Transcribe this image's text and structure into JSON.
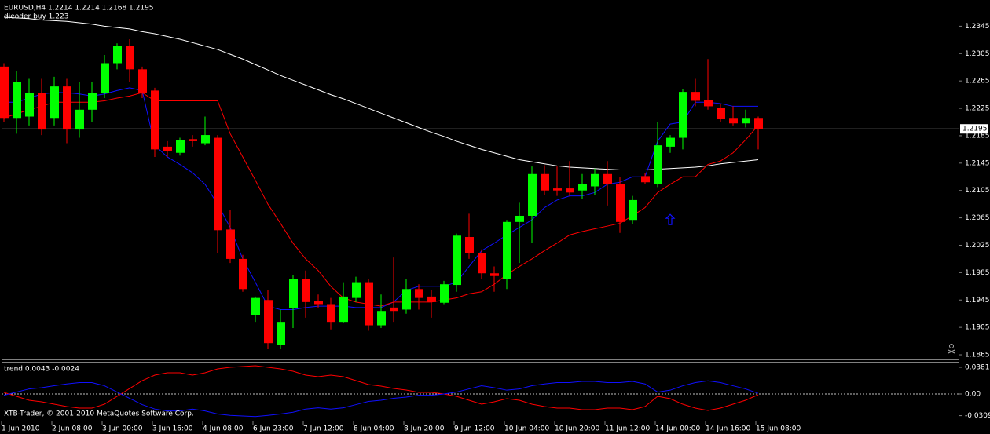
{
  "chart_data": [
    {
      "type": "candlestick",
      "title": "EURUSD,H4  1.2214 1.2214 1.2168 1.2195",
      "annotation": "dieoder buy 1.223",
      "categories": [
        "1 Jun 2010",
        null,
        null,
        null,
        "2 Jun 08:00",
        null,
        null,
        null,
        "3 Jun 00:00",
        null,
        null,
        null,
        "3 Jun 16:00",
        null,
        null,
        null,
        "4 Jun 08:00",
        null,
        null,
        null,
        "6 Jun 23:00",
        null,
        null,
        null,
        "7 Jun 12:00",
        null,
        null,
        null,
        "8 Jun 04:00",
        null,
        null,
        null,
        "8 Jun 20:00",
        null,
        null,
        null,
        "9 Jun 12:00",
        null,
        null,
        null,
        "10 Jun 04:00",
        null,
        null,
        null,
        "10 Jun 20:00",
        null,
        null,
        null,
        "11 Jun 12:00",
        null,
        null,
        null,
        "14 Jun 00:00",
        null,
        null,
        null,
        "14 Jun 16:00",
        null,
        null,
        null,
        "15 Jun 08:00"
      ],
      "open": [
        1.2286,
        1.2211,
        1.2213,
        1.2248,
        1.2211,
        1.2257,
        1.2194,
        1.2223,
        1.2248,
        1.2291,
        1.2316,
        1.2282,
        1.2251,
        1.2169,
        1.216,
        1.218,
        1.2174,
        1.2182,
        1.2048,
        1.2005,
        1.1923,
        1.1945,
        1.1879,
        1.1933,
        1.1976,
        1.1944,
        1.1939,
        1.1913,
        1.1948,
        1.1971,
        1.1908,
        1.1934,
        1.1931,
        1.1961,
        1.195,
        1.1941,
        1.1967,
        1.2037,
        1.2014,
        1.1984,
        1.1976,
        1.2059,
        1.2068,
        1.2129,
        1.2108,
        1.2108,
        1.2105,
        1.2111,
        1.2129,
        1.2114,
        1.2062,
        1.2126,
        1.2114,
        1.2169,
        1.2182,
        1.2249,
        1.2237,
        1.2226,
        1.2211,
        1.2203,
        1.2211
      ],
      "high": [
        1.2291,
        1.228,
        1.2268,
        1.2268,
        1.2271,
        1.2268,
        1.2263,
        1.2263,
        1.2303,
        1.232,
        1.2326,
        1.2286,
        1.2255,
        1.2177,
        1.2182,
        1.2186,
        1.2213,
        1.2186,
        1.2076,
        1.2011,
        1.195,
        1.1959,
        1.1931,
        1.1982,
        1.1988,
        1.1953,
        1.1948,
        1.1971,
        1.1979,
        1.1976,
        1.1953,
        1.2007,
        1.1976,
        1.1968,
        1.1959,
        1.1973,
        1.2042,
        1.2071,
        1.2019,
        1.1994,
        1.2062,
        1.2087,
        1.214,
        1.2142,
        1.214,
        1.2148,
        1.2129,
        1.2137,
        1.2148,
        1.2125,
        1.2097,
        1.2131,
        1.2205,
        1.2186,
        1.2253,
        1.2268,
        1.2297,
        1.2232,
        1.2228,
        1.2223,
        1.2213
      ],
      "low": [
        1.2205,
        1.2188,
        1.22,
        1.2186,
        1.22,
        1.2174,
        1.2182,
        1.2205,
        1.224,
        1.2282,
        1.2263,
        1.224,
        1.2154,
        1.2154,
        1.2156,
        1.2169,
        1.2171,
        1.2013,
        1.1999,
        1.1957,
        1.1913,
        1.1873,
        1.1873,
        1.1904,
        1.1919,
        1.1934,
        1.1902,
        1.1911,
        1.1942,
        1.19,
        1.1904,
        1.1913,
        1.1925,
        1.1931,
        1.1919,
        1.1939,
        1.1957,
        1.2005,
        1.1976,
        1.1957,
        1.1961,
        1.1999,
        1.2028,
        1.2099,
        1.2097,
        1.2097,
        1.2093,
        1.2099,
        1.2083,
        1.2043,
        1.2056,
        1.2114,
        1.211,
        1.216,
        1.2165,
        1.2228,
        1.2223,
        1.2205,
        1.22,
        1.2197,
        1.2165
      ],
      "close": [
        1.2211,
        1.2263,
        1.2248,
        1.2194,
        1.2257,
        1.2194,
        1.2223,
        1.2248,
        1.2291,
        1.2316,
        1.2282,
        1.2248,
        1.2165,
        1.2162,
        1.2179,
        1.2177,
        1.2186,
        1.2047,
        1.2005,
        1.1961,
        1.1948,
        1.1882,
        1.1913,
        1.1976,
        1.1942,
        1.1939,
        1.1913,
        1.195,
        1.1971,
        1.1908,
        1.1929,
        1.1929,
        1.1961,
        1.1948,
        1.1942,
        1.1968,
        1.2039,
        1.2013,
        1.1984,
        1.198,
        1.2059,
        1.2068,
        1.2129,
        1.2105,
        1.2105,
        1.2102,
        1.2114,
        1.2129,
        1.2114,
        1.2059,
        1.2091,
        1.2117,
        1.2171,
        1.2182,
        1.2249,
        1.2236,
        1.2228,
        1.2209,
        1.2203,
        1.2211,
        1.2195
      ],
      "up_color": "#00ff00",
      "down_color": "#ff0000",
      "lines": [
        {
          "color": "#ffffff",
          "values": [
            1.2358,
            1.2357,
            1.2356,
            1.2354,
            1.2353,
            1.2352,
            1.235,
            1.2348,
            1.2345,
            1.2343,
            1.2341,
            1.2337,
            1.2334,
            1.233,
            1.2326,
            1.2321,
            1.2316,
            1.2311,
            1.2304,
            1.2297,
            1.2289,
            1.2281,
            1.2273,
            1.2266,
            1.2259,
            1.2252,
            1.2245,
            1.2239,
            1.2232,
            1.2225,
            1.2218,
            1.2211,
            1.2204,
            1.2197,
            1.219,
            1.2184,
            1.2177,
            1.2171,
            1.2165,
            1.216,
            1.2155,
            1.215,
            1.2147,
            1.2144,
            1.2141,
            1.2139,
            1.2138,
            1.2137,
            1.2136,
            1.2135,
            1.2135,
            1.2135,
            1.2136,
            1.2137,
            1.2138,
            1.2139,
            1.2141,
            1.2144,
            1.2146,
            1.2148,
            1.215
          ]
        },
        {
          "color": "#1010ff",
          "values": [
            1.2234,
            1.2234,
            1.224,
            1.2246,
            1.2248,
            1.2248,
            1.2246,
            1.2243,
            1.2246,
            1.2251,
            1.2255,
            1.2251,
            1.2171,
            1.2154,
            1.2143,
            1.2131,
            1.2114,
            1.2085,
            1.2051,
            1.2005,
            1.1971,
            1.1936,
            1.1931,
            1.1931,
            1.1934,
            1.1936,
            1.1936,
            1.1936,
            1.1934,
            1.1934,
            1.1934,
            1.1942,
            1.1959,
            1.1965,
            1.1965,
            1.1965,
            1.1971,
            1.1994,
            1.2017,
            1.2028,
            1.204,
            1.2051,
            1.2062,
            1.208,
            1.2091,
            1.2097,
            1.2097,
            1.2102,
            1.2114,
            1.2117,
            1.2125,
            1.2125,
            1.2177,
            1.2202,
            1.2205,
            1.2234,
            1.2234,
            1.2232,
            1.2228,
            1.2228,
            1.2228
          ]
        },
        {
          "color": "#ff0000",
          "values": [
            1.2211,
            1.2217,
            1.2223,
            1.2228,
            1.2234,
            1.2234,
            1.2234,
            1.2234,
            1.2236,
            1.224,
            1.2243,
            1.2248,
            1.2236,
            1.2236,
            1.2236,
            1.2236,
            1.2236,
            1.2236,
            1.2188,
            1.2154,
            1.212,
            1.2085,
            1.2057,
            1.2028,
            1.2005,
            1.1988,
            1.1965,
            1.1948,
            1.1942,
            1.1939,
            1.1936,
            1.1942,
            1.1942,
            1.1942,
            1.1942,
            1.1945,
            1.1948,
            1.1954,
            1.1957,
            1.1968,
            1.1982,
            1.1994,
            1.2005,
            1.2017,
            1.2028,
            1.204,
            1.2045,
            1.2049,
            1.2053,
            1.2057,
            1.2068,
            1.208,
            1.2102,
            1.2114,
            1.2125,
            1.2125,
            1.2143,
            1.2148,
            1.216,
            1.2179,
            1.22
          ]
        }
      ],
      "last_price": 1.2195,
      "up_arrow": {
        "x": 53,
        "y": 1.2062,
        "color": "#1010ff"
      },
      "ylim": [
        1.1857,
        1.2381
      ],
      "yticks": [
        1.2345,
        1.2305,
        1.2265,
        1.2225,
        1.2185,
        1.2145,
        1.2105,
        1.2065,
        1.2025,
        1.1985,
        1.1945,
        1.1905,
        1.1865
      ]
    },
    {
      "type": "line",
      "title": "trend 0.0043 -0.0024",
      "annotation": "XTB-Trader, © 2001-2010 MetaQuotes Software Corp.",
      "series": [
        {
          "color": "#ff0000",
          "values": [
            0.0022,
            -0.0034,
            -0.009,
            -0.0112,
            -0.0146,
            -0.0179,
            -0.0202,
            -0.0202,
            -0.0146,
            -0.0034,
            0.0078,
            0.019,
            0.0269,
            0.0302,
            0.0302,
            0.0269,
            0.0302,
            0.0358,
            0.0381,
            0.0392,
            0.0403,
            0.0381,
            0.0358,
            0.0325,
            0.0269,
            0.0246,
            0.0269,
            0.0246,
            0.019,
            0.0134,
            0.0112,
            0.0078,
            0.0056,
            0.0022,
            0.0022,
            0,
            -0.0034,
            -0.009,
            -0.0146,
            -0.0112,
            -0.0067,
            -0.009,
            -0.0146,
            -0.0179,
            -0.0202,
            -0.0202,
            -0.0224,
            -0.0224,
            -0.0202,
            -0.0202,
            -0.0224,
            -0.0179,
            -0.0034,
            -0.0067,
            -0.0146,
            -0.0202,
            -0.0235,
            -0.0202,
            -0.0146,
            -0.009,
            -0.0011
          ]
        },
        {
          "color": "#1010ff",
          "values": [
            -0.0018,
            0.0027,
            0.0072,
            0.009,
            0.0117,
            0.0143,
            0.0162,
            0.0162,
            0.0117,
            0.0027,
            -0.0062,
            -0.0152,
            -0.0215,
            -0.0242,
            -0.0242,
            -0.0215,
            -0.0242,
            -0.0286,
            -0.0305,
            -0.0314,
            -0.0322,
            -0.0305,
            -0.0286,
            -0.026,
            -0.0215,
            -0.0197,
            -0.0215,
            -0.0197,
            -0.0152,
            -0.0107,
            -0.009,
            -0.0062,
            -0.0045,
            -0.0018,
            -0.0018,
            0,
            0.0027,
            0.0072,
            0.0117,
            0.009,
            0.0054,
            0.0072,
            0.0117,
            0.0143,
            0.0162,
            0.0162,
            0.0179,
            0.0179,
            0.0162,
            0.0162,
            0.0179,
            0.0143,
            0.0027,
            0.0054,
            0.0117,
            0.0162,
            0.0188,
            0.0162,
            0.0117,
            0.0072,
            0.0009
          ]
        }
      ],
      "reference_line": 0,
      "ylim": [
        -0.0392,
        0.0448
      ],
      "yticks": [
        0.0381,
        {
          "value": 0,
          "label": "0.00"
        },
        -0.0309
      ]
    }
  ]
}
